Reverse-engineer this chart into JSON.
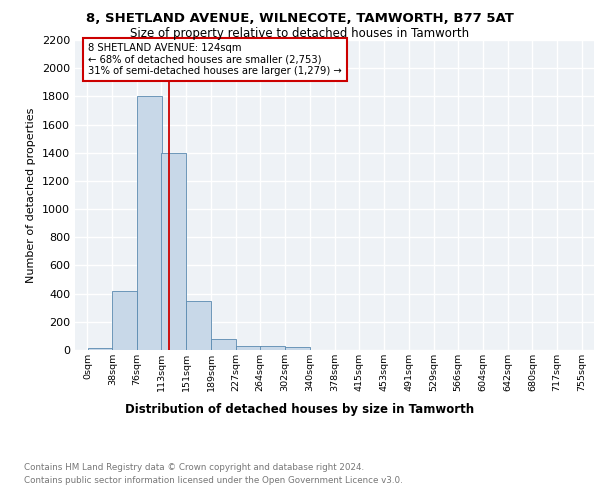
{
  "title1": "8, SHETLAND AVENUE, WILNECOTE, TAMWORTH, B77 5AT",
  "title2": "Size of property relative to detached houses in Tamworth",
  "xlabel": "Distribution of detached houses by size in Tamworth",
  "ylabel": "Number of detached properties",
  "bin_edges": [
    0,
    38,
    76,
    113,
    151,
    189,
    227,
    264,
    302,
    340,
    378,
    415,
    453,
    491,
    529,
    566,
    604,
    642,
    680,
    717,
    755
  ],
  "bar_heights": [
    15,
    420,
    1800,
    1400,
    350,
    80,
    30,
    25,
    20,
    0,
    0,
    0,
    0,
    0,
    0,
    0,
    0,
    0,
    0,
    0
  ],
  "bar_color": "#c8d8e8",
  "bar_edge_color": "#5a8ab0",
  "vline_x": 124,
  "vline_color": "#cc0000",
  "ylim": [
    0,
    2200
  ],
  "yticks": [
    0,
    200,
    400,
    600,
    800,
    1000,
    1200,
    1400,
    1600,
    1800,
    2000,
    2200
  ],
  "annotation_text": "8 SHETLAND AVENUE: 124sqm\n← 68% of detached houses are smaller (2,753)\n31% of semi-detached houses are larger (1,279) →",
  "footer_line1": "Contains HM Land Registry data © Crown copyright and database right 2024.",
  "footer_line2": "Contains public sector information licensed under the Open Government Licence v3.0.",
  "bg_color": "#eef2f6",
  "grid_color": "#ffffff",
  "tick_labels": [
    "0sqm",
    "38sqm",
    "76sqm",
    "113sqm",
    "151sqm",
    "189sqm",
    "227sqm",
    "264sqm",
    "302sqm",
    "340sqm",
    "378sqm",
    "415sqm",
    "453sqm",
    "491sqm",
    "529sqm",
    "566sqm",
    "604sqm",
    "642sqm",
    "680sqm",
    "717sqm",
    "755sqm"
  ]
}
